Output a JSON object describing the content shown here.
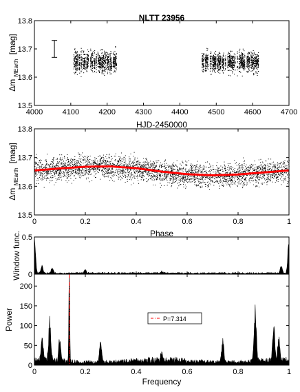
{
  "title": "NLTT 23956",
  "chart_data": [
    {
      "panel": "light_curve_time",
      "type": "scatter",
      "xlabel": "HJD-2450000",
      "ylabel_main": "Δm",
      "ylabel_sub": "MEarth",
      "ylabel_unit": "[mag]",
      "xlim": [
        4000,
        4700
      ],
      "ylim": [
        13.5,
        13.8
      ],
      "xticks": [
        4000,
        4100,
        4200,
        4300,
        4400,
        4500,
        4600,
        4700
      ],
      "yticks": [
        13.5,
        13.6,
        13.7,
        13.8
      ],
      "observing_seasons": [
        [
          4105,
          4225
        ],
        [
          4460,
          4615
        ]
      ],
      "error_bar": {
        "x": 4055,
        "y_low": 13.67,
        "y_high": 13.73
      },
      "y_range_of_points": [
        13.53,
        13.78
      ]
    },
    {
      "panel": "phased_light_curve",
      "type": "scatter",
      "xlabel": "Phase",
      "ylabel_main": "Δm",
      "ylabel_sub": "MEarth",
      "ylabel_unit": "[mag]",
      "xlim": [
        0,
        1
      ],
      "ylim": [
        13.5,
        13.8
      ],
      "xticks": [
        0,
        0.2,
        0.4,
        0.6,
        0.8,
        1
      ],
      "yticks": [
        13.5,
        13.6,
        13.7,
        13.8
      ],
      "model_fit": {
        "color": "#ff0000",
        "phase": [
          0,
          0.1,
          0.2,
          0.3,
          0.4,
          0.5,
          0.6,
          0.7,
          0.8,
          0.9,
          1.0
        ],
        "mag": [
          13.655,
          13.662,
          13.668,
          13.669,
          13.663,
          13.651,
          13.642,
          13.638,
          13.641,
          13.648,
          13.655
        ]
      }
    },
    {
      "panel": "window_function",
      "type": "line",
      "xlabel": "",
      "ylabel": "Window func.",
      "xlim": [
        0,
        1
      ],
      "ylim": [
        0,
        0.5
      ],
      "yticks": [
        0,
        0.5
      ],
      "peaks": [
        {
          "x": 0.0,
          "y": 0.52
        },
        {
          "x": 1.0,
          "y": 0.52
        },
        {
          "x": 0.03,
          "y": 0.1
        },
        {
          "x": 0.07,
          "y": 0.07
        },
        {
          "x": 0.2,
          "y": 0.05
        },
        {
          "x": 0.5,
          "y": 0.03
        },
        {
          "x": 0.97,
          "y": 0.1
        }
      ]
    },
    {
      "panel": "periodogram",
      "type": "line",
      "xlabel": "Frequency",
      "ylabel": "Power",
      "xlim": [
        0,
        1
      ],
      "ylim": [
        0,
        230
      ],
      "xticks": [
        0,
        0.2,
        0.4,
        0.6,
        0.8,
        1
      ],
      "yticks": [
        0,
        50,
        100,
        150,
        200
      ],
      "legend": {
        "label": "P=7.314",
        "color": "#ff0000",
        "style": "dash-dot",
        "placement": "upper-center"
      },
      "peaks": [
        {
          "x": 0.137,
          "y": 230
        },
        {
          "x": 0.867,
          "y": 150
        },
        {
          "x": 0.06,
          "y": 110
        },
        {
          "x": 0.03,
          "y": 70
        },
        {
          "x": 0.1,
          "y": 65
        },
        {
          "x": 0.26,
          "y": 60
        },
        {
          "x": 0.74,
          "y": 60
        },
        {
          "x": 0.94,
          "y": 105
        },
        {
          "x": 0.96,
          "y": 65
        },
        {
          "x": 0.5,
          "y": 20
        }
      ]
    }
  ]
}
